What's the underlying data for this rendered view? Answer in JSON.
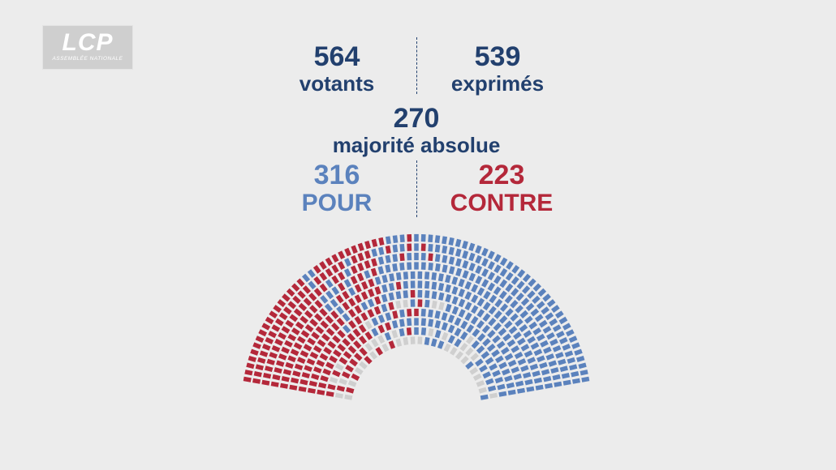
{
  "logo": {
    "main": "LCP",
    "sub": "ASSEMBLÉE NATIONALE"
  },
  "votants": {
    "value": "564",
    "label": "votants"
  },
  "exprimes": {
    "value": "539",
    "label": "exprimés"
  },
  "majorite": {
    "value": "270",
    "label": "majorité absolue"
  },
  "pour": {
    "value": "316",
    "label": "POUR"
  },
  "contre": {
    "value": "223",
    "label": "CONTRE"
  },
  "chart_data": {
    "type": "hemicycle",
    "seats_total": 577,
    "groups": [
      {
        "name": "contre",
        "seats": 223,
        "color": "#b4283a"
      },
      {
        "name": "pour",
        "seats": 316,
        "color": "#5b82bd"
      },
      {
        "name": "abstention / non-votants",
        "seats": 38,
        "color": "#cfcfcf"
      }
    ]
  },
  "colors": {
    "background": "#ececec",
    "navy": "#22406e",
    "pour": "#5b82bd",
    "contre": "#b4283a",
    "absent": "#cfcfcf"
  }
}
